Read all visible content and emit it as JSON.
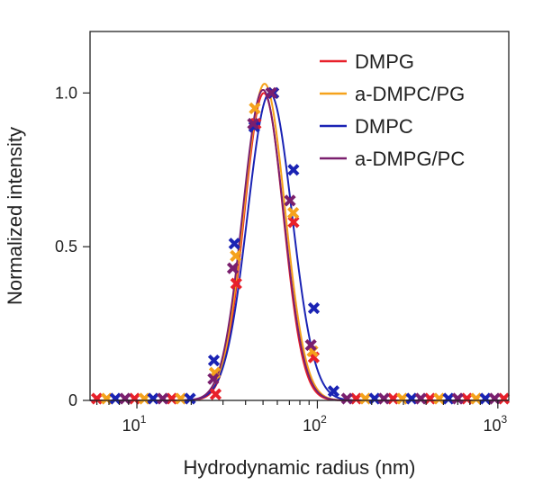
{
  "chart_data": {
    "type": "scatter",
    "xlabel": "Hydrodynamic radius (nm)",
    "ylabel": "Normalized intensity",
    "xscale": "log",
    "xlim": [
      5.5,
      1150
    ],
    "ylim": [
      0,
      1.2
    ],
    "x_ticks": [
      {
        "base": "10",
        "exp": "1",
        "value": 10
      },
      {
        "base": "10",
        "exp": "2",
        "value": 100
      },
      {
        "base": "10",
        "exp": "3",
        "value": 1000
      }
    ],
    "y_ticks": [
      {
        "label": "0",
        "value": 0
      },
      {
        "label": "0.5",
        "value": 0.5
      },
      {
        "label": "1.0",
        "value": 1.0
      }
    ],
    "grid": false,
    "legend_position": "top-right",
    "x": [
      6,
      6.8,
      7.6,
      8.6,
      9.7,
      11,
      12.3,
      13.9,
      15.6,
      17.5,
      19.7,
      22.2,
      25,
      28,
      31.5,
      35.5,
      39.9,
      44.9,
      50.5,
      56.8,
      63.9,
      71.9,
      80.9,
      91,
      102.4,
      115.2,
      129.6,
      145.8,
      164,
      184.5,
      207.6,
      233.6,
      262.8,
      295.6,
      332.6,
      374.1,
      420.9,
      473.5,
      532.7,
      599.2,
      674.1,
      758.4,
      853.1,
      959.8,
      1079.7
    ],
    "series": [
      {
        "name": "DMPG",
        "color": "#e8202a",
        "markers_x": [
          27.3,
          35.5,
          45.5,
          57.1,
          73.8,
          95.5
        ],
        "markers_y": [
          0.02,
          0.38,
          0.9,
          1.0,
          0.58,
          0.14
        ],
        "curve": {
          "center": 50.5,
          "sigma_log10": 0.108,
          "amplitude": 1.0
        }
      },
      {
        "name": "a-DMPC/PG",
        "color": "#f5a21c",
        "markers_x": [
          27.0,
          35.3,
          45.0,
          57.0,
          73.5,
          94.0
        ],
        "markers_y": [
          0.09,
          0.47,
          0.95,
          1.0,
          0.61,
          0.16
        ],
        "curve": {
          "center": 51.0,
          "sigma_log10": 0.113,
          "amplitude": 1.03
        }
      },
      {
        "name": "DMPC",
        "color": "#1a23b4",
        "markers_x": [
          26.7,
          34.7,
          44.7,
          57.0,
          73.7,
          95.6,
          123.0
        ],
        "markers_y": [
          0.13,
          0.51,
          0.89,
          1.0,
          0.75,
          0.3,
          0.03
        ],
        "curve": {
          "center": 54.5,
          "sigma_log10": 0.123,
          "amplitude": 1.0
        }
      },
      {
        "name": "a-DMPG/PC",
        "color": "#7a1f6e",
        "markers_x": [
          26.5,
          34.0,
          44.0,
          55.5,
          70.5,
          92.0
        ],
        "markers_y": [
          0.07,
          0.43,
          0.9,
          1.0,
          0.65,
          0.18
        ],
        "curve": {
          "center": 50.0,
          "sigma_log10": 0.113,
          "amplitude": 1.01
        }
      }
    ]
  }
}
